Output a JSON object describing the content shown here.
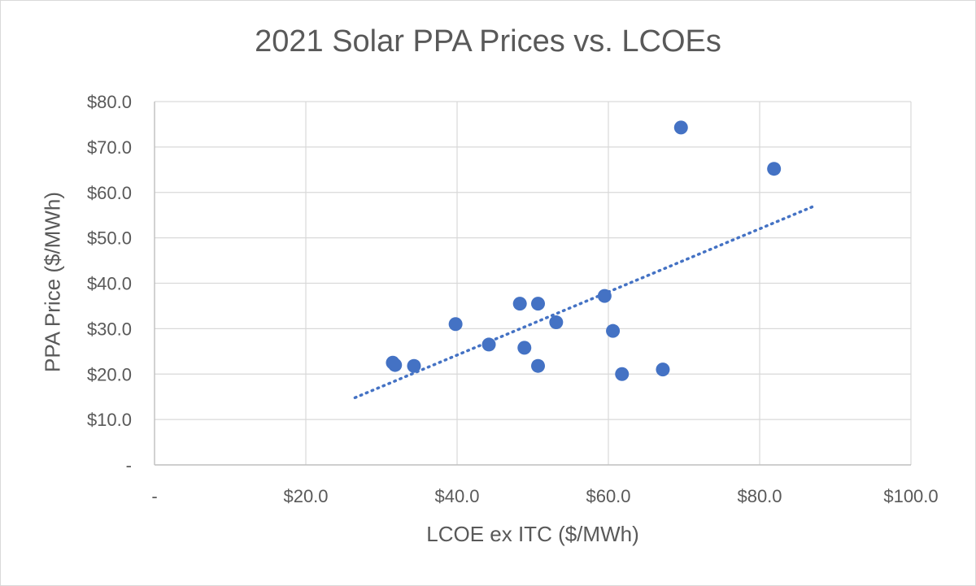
{
  "chart_data": {
    "type": "scatter",
    "title": "2021 Solar PPA Prices vs. LCOEs",
    "xlabel": "LCOE ex ITC ($/MWh)",
    "ylabel": "PPA Price ($/MWh)",
    "xlim": [
      0,
      100
    ],
    "ylim": [
      0,
      80
    ],
    "x_ticks": [
      0,
      20,
      40,
      60,
      80,
      100
    ],
    "x_tick_labels": [
      "-",
      "$20.0",
      "$40.0",
      "$60.0",
      "$80.0",
      "$100.0"
    ],
    "y_ticks": [
      0,
      10,
      20,
      30,
      40,
      50,
      60,
      70,
      80
    ],
    "y_tick_labels": [
      "-",
      "$10.0",
      "$20.0",
      "$30.0",
      "$40.0",
      "$50.0",
      "$60.0",
      "$70.0",
      "$80.0"
    ],
    "grid": true,
    "legend": false,
    "series": [
      {
        "color": "#4472c4",
        "points": [
          {
            "x": 31.5,
            "y": 22.5
          },
          {
            "x": 31.8,
            "y": 22.0
          },
          {
            "x": 34.3,
            "y": 21.8
          },
          {
            "x": 39.8,
            "y": 31.0
          },
          {
            "x": 44.2,
            "y": 26.5
          },
          {
            "x": 48.3,
            "y": 35.5
          },
          {
            "x": 48.9,
            "y": 25.8
          },
          {
            "x": 50.7,
            "y": 35.5
          },
          {
            "x": 50.7,
            "y": 21.8
          },
          {
            "x": 53.1,
            "y": 31.4
          },
          {
            "x": 59.5,
            "y": 37.2
          },
          {
            "x": 60.6,
            "y": 29.5
          },
          {
            "x": 61.8,
            "y": 20.0
          },
          {
            "x": 67.2,
            "y": 21.0
          },
          {
            "x": 69.6,
            "y": 74.3
          },
          {
            "x": 81.9,
            "y": 65.2
          }
        ]
      }
    ],
    "trendline": {
      "type": "linear",
      "style": "dotted",
      "color": "#4472c4",
      "x": [
        26.5,
        87.5
      ],
      "y": [
        14.8,
        57.2
      ]
    }
  }
}
